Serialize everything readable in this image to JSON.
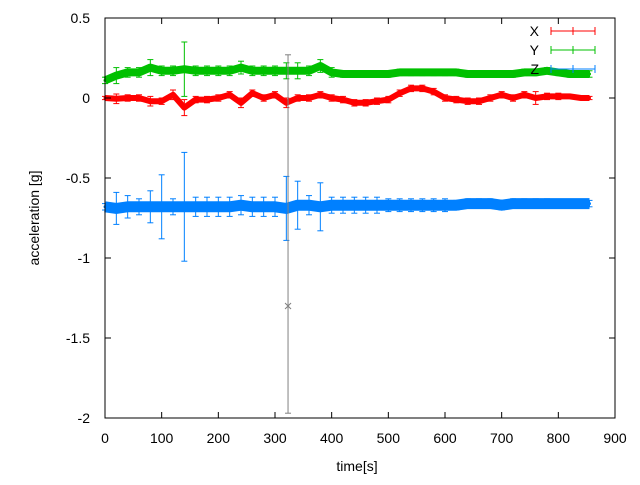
{
  "chart_data": {
    "type": "line",
    "title": "",
    "xlabel": "time[s]",
    "ylabel": "acceleration [g]",
    "xlim": [
      0,
      900
    ],
    "ylim": [
      -2,
      0.5
    ],
    "xticks": [
      "0",
      "100",
      "200",
      "300",
      "400",
      "500",
      "600",
      "700",
      "800",
      "900"
    ],
    "yticks": [
      "0.5",
      "0",
      "-0.5",
      "-1",
      "-1.5",
      "-2"
    ],
    "grid": false,
    "legend": "top-right",
    "x": [
      0,
      20,
      40,
      60,
      80,
      100,
      120,
      140,
      160,
      180,
      200,
      220,
      240,
      260,
      280,
      300,
      320,
      340,
      360,
      380,
      400,
      420,
      440,
      460,
      480,
      500,
      520,
      540,
      560,
      580,
      600,
      620,
      640,
      660,
      680,
      700,
      720,
      740,
      760,
      780,
      800,
      820,
      840,
      855
    ],
    "series": [
      {
        "name": "X",
        "color": "#ff0000",
        "marker": "+",
        "values": [
          0,
          -0.005,
          0,
          0,
          -0.02,
          -0.02,
          0.02,
          -0.06,
          -0.01,
          -0.01,
          0,
          0.02,
          -0.03,
          0.03,
          0,
          0.02,
          -0.03,
          0,
          0,
          0.02,
          0,
          -0.01,
          -0.03,
          -0.03,
          -0.02,
          -0.01,
          0.03,
          0.06,
          0.06,
          0.04,
          0,
          -0.01,
          -0.02,
          -0.02,
          0,
          0.02,
          0,
          0.02,
          0,
          0.01,
          0.01,
          0.01,
          0,
          0
        ],
        "errors": [
          0.01,
          0.03,
          0.02,
          0.02,
          0.03,
          0.02,
          0.03,
          0.05,
          0.02,
          0.02,
          0.02,
          0.02,
          0.03,
          0.02,
          0.02,
          0.02,
          0.03,
          0.02,
          0.02,
          0.02,
          0.02,
          0.02,
          0.02,
          0.02,
          0.02,
          0.02,
          0.02,
          0.02,
          0.02,
          0.02,
          0.02,
          0.02,
          0.02,
          0.02,
          0.02,
          0.02,
          0.02,
          0.02,
          0.04,
          0.02,
          0.02,
          0.01,
          0.01,
          0.01
        ]
      },
      {
        "name": "Y",
        "color": "#00c000",
        "marker": "x",
        "values": [
          0.11,
          0.14,
          0.16,
          0.16,
          0.19,
          0.17,
          0.17,
          0.18,
          0.17,
          0.17,
          0.17,
          0.17,
          0.19,
          0.17,
          0.17,
          0.17,
          0.17,
          0.17,
          0.17,
          0.2,
          0.16,
          0.15,
          0.15,
          0.15,
          0.15,
          0.15,
          0.16,
          0.16,
          0.16,
          0.16,
          0.16,
          0.16,
          0.15,
          0.15,
          0.15,
          0.15,
          0.15,
          0.16,
          0.16,
          0.17,
          0.16,
          0.15,
          0.15,
          0.15
        ],
        "errors": [
          0.02,
          0.05,
          0.03,
          0.03,
          0.05,
          0.03,
          0.03,
          0.17,
          0.03,
          0.03,
          0.03,
          0.03,
          0.04,
          0.03,
          0.03,
          0.03,
          0.05,
          0.05,
          0.03,
          0.04,
          0.03,
          0.02,
          0.02,
          0.02,
          0.02,
          0.02,
          0.02,
          0.02,
          0.02,
          0.02,
          0.02,
          0.02,
          0.02,
          0.02,
          0.02,
          0.02,
          0.02,
          0.02,
          0.02,
          0.02,
          0.02,
          0.02,
          0.02,
          0.02
        ]
      },
      {
        "name": "Z",
        "color": "#0080ff",
        "marker": "*",
        "values": [
          -0.68,
          -0.69,
          -0.68,
          -0.68,
          -0.68,
          -0.68,
          -0.68,
          -0.68,
          -0.68,
          -0.68,
          -0.68,
          -0.68,
          -0.67,
          -0.68,
          -0.68,
          -0.68,
          -0.69,
          -0.67,
          -0.67,
          -0.68,
          -0.67,
          -0.67,
          -0.67,
          -0.67,
          -0.67,
          -0.67,
          -0.67,
          -0.67,
          -0.67,
          -0.67,
          -0.67,
          -0.67,
          -0.66,
          -0.66,
          -0.66,
          -0.67,
          -0.66,
          -0.66,
          -0.66,
          -0.66,
          -0.66,
          -0.66,
          -0.66,
          -0.66
        ],
        "errors": [
          0.02,
          0.1,
          0.07,
          0.05,
          0.1,
          0.2,
          0.05,
          0.34,
          0.06,
          0.06,
          0.06,
          0.06,
          0.06,
          0.06,
          0.06,
          0.06,
          0.2,
          0.15,
          0.06,
          0.15,
          0.05,
          0.05,
          0.05,
          0.05,
          0.05,
          0.04,
          0.04,
          0.04,
          0.04,
          0.04,
          0.04,
          0.03,
          0.03,
          0.03,
          0.03,
          0.03,
          0.03,
          0.03,
          0.03,
          0.03,
          0.02,
          0.02,
          0.02,
          0.02
        ]
      }
    ],
    "outlier": {
      "x": 323,
      "y": -1.3,
      "low": -1.97,
      "high": 0.27,
      "color": "#808080"
    }
  }
}
